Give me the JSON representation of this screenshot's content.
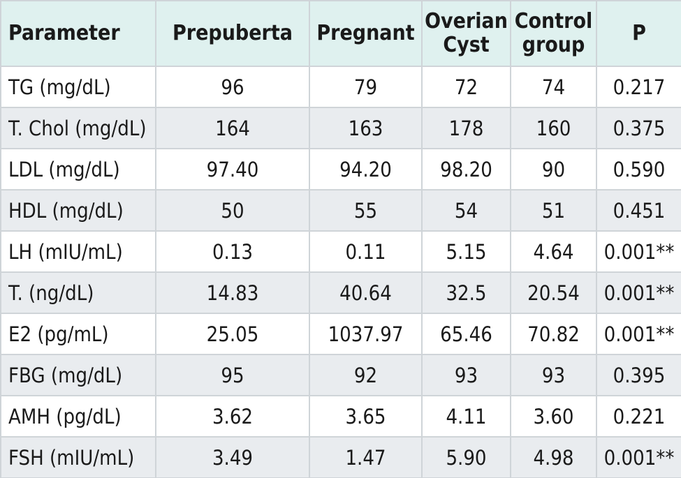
{
  "table": {
    "headers": [
      {
        "lines": [
          "Parameter"
        ]
      },
      {
        "lines": [
          "Prepuberta"
        ]
      },
      {
        "lines": [
          "Pregnant"
        ]
      },
      {
        "lines": [
          "Overian",
          "Cyst"
        ]
      },
      {
        "lines": [
          "Control",
          "group"
        ]
      },
      {
        "lines": [
          "P"
        ]
      }
    ],
    "rows": [
      [
        "TG (mg/dL)",
        "96",
        "79",
        "72",
        "74",
        "0.217"
      ],
      [
        "T. Chol (mg/dL)",
        "164",
        "163",
        "178",
        "160",
        "0.375"
      ],
      [
        "LDL (mg/dL)",
        "97.40",
        "94.20",
        "98.20",
        "90",
        "0.590"
      ],
      [
        "HDL (mg/dL)",
        "50",
        "55",
        "54",
        "51",
        "0.451"
      ],
      [
        "LH (mIU/mL)",
        "0.13",
        "0.11",
        "5.15",
        "4.64",
        "0.001**"
      ],
      [
        "T. (ng/dL)",
        "14.83",
        "40.64",
        "32.5",
        "20.54",
        "0.001**"
      ],
      [
        "E2 (pg/mL)",
        "25.05",
        "1037.97",
        "65.46",
        "70.82",
        "0.001**"
      ],
      [
        "FBG (mg/dL)",
        "95",
        "92",
        "93",
        "93",
        "0.395"
      ],
      [
        "AMH (pg/dL)",
        "3.62",
        "3.65",
        "4.11",
        "3.60",
        "0.221"
      ],
      [
        "FSH (mIU/mL)",
        "3.49",
        "1.47",
        "5.90",
        "4.98",
        "0.001**"
      ]
    ]
  },
  "colors": {
    "header_bg": "#dff1ef",
    "stripe_bg": "#e9ecef",
    "row_bg": "#ffffff",
    "border": "#cfd4d8",
    "text": "#1a1a1a"
  }
}
